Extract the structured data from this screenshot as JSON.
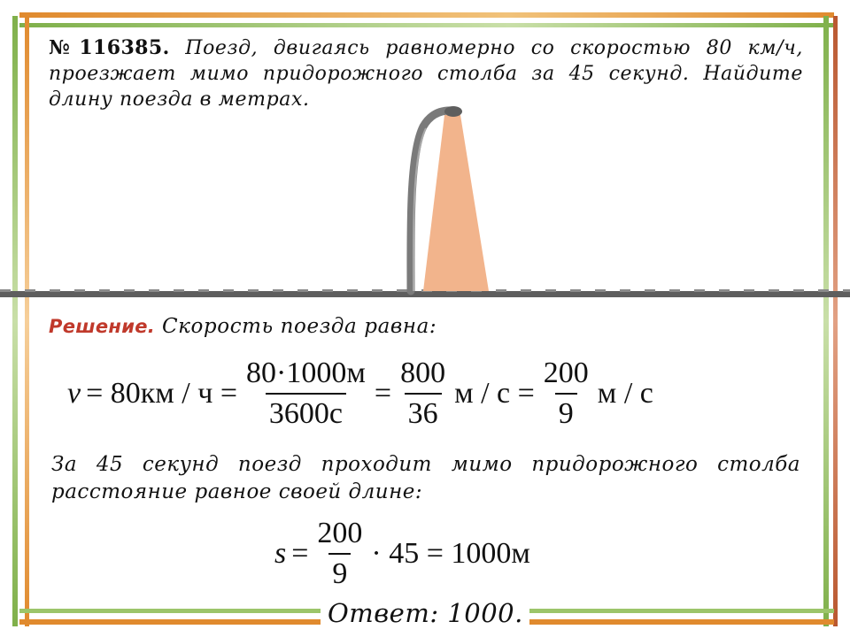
{
  "problem": {
    "number": "№116385.",
    "text": "Поезд, двигаясь равномерно со скоростью 80 км/ч, проезжает мимо придорожного столба за 45 секунд. Найдите длину поезда в метрах."
  },
  "solution": {
    "label": "Решение.",
    "intro": "Скорость поезда равна:",
    "eq1": {
      "lhs": "v",
      "eq": "= 80км / ч =",
      "f1_num": "80·1000м",
      "f1_den": "3600с",
      "eq2": "=",
      "f2_num": "800",
      "f2_den": "36",
      "unit1": "м / с =",
      "f3_num": "200",
      "f3_den": "9",
      "unit2": "м / с"
    },
    "explanation": "За 45 секунд поезд проходит мимо придорожного столба расстояние равное своей длине:",
    "eq2": {
      "lhs": "s",
      "eq": "=",
      "f_num": "200",
      "f_den": "9",
      "rest": "· 45 = 1000м"
    },
    "answer": "Ответ: 1000."
  },
  "colors": {
    "frame_orange": "#e08a2e",
    "frame_green": "#7fb04a",
    "frame_brown": "#b9572f",
    "road": "#5e5e5e",
    "light_beam": "#f2b48c",
    "solution_label": "#c0392b"
  }
}
